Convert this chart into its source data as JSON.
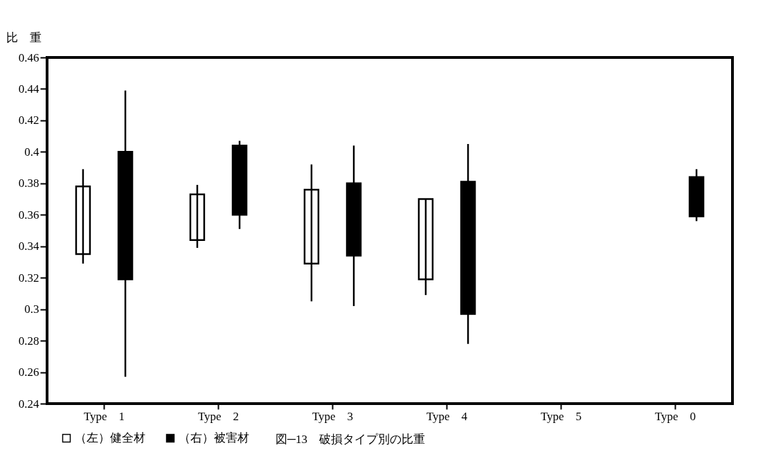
{
  "chart_data": {
    "type": "bar",
    "title": "図─13　破損タイプ別の比重",
    "ylabel": "比　重",
    "categories": [
      "Type　1",
      "Type　2",
      "Type　3",
      "Type　4",
      "Type　5",
      "Type　0"
    ],
    "series": [
      {
        "name": "（左）健全材",
        "color": "#ffffff",
        "base": [
          0.335,
          0.344,
          0.329,
          0.319,
          null,
          null
        ],
        "values": [
          0.043,
          0.029,
          0.047,
          0.051,
          null,
          null
        ],
        "errors": [
          [
            0.329,
            0.389
          ],
          [
            0.339,
            0.379
          ],
          [
            0.305,
            0.392
          ],
          [
            0.309,
            0.37
          ],
          null,
          null
        ]
      },
      {
        "name": "（右）被害材",
        "color": "#000000",
        "base": [
          0.319,
          0.36,
          0.334,
          0.297,
          null,
          0.359
        ],
        "values": [
          0.081,
          0.044,
          0.046,
          0.084,
          null,
          0.025
        ],
        "errors": [
          [
            0.257,
            0.439
          ],
          [
            0.351,
            0.407
          ],
          [
            0.302,
            0.404
          ],
          [
            0.278,
            0.405
          ],
          null,
          [
            0.356,
            0.389
          ]
        ]
      }
    ],
    "ylim": [
      0.24,
      0.46
    ],
    "yticks": [
      0.24,
      0.26,
      0.28,
      0.3,
      0.32,
      0.34,
      0.36,
      0.38,
      0.4,
      0.42,
      0.44,
      0.46
    ],
    "legend": "bottom",
    "grid": false
  }
}
